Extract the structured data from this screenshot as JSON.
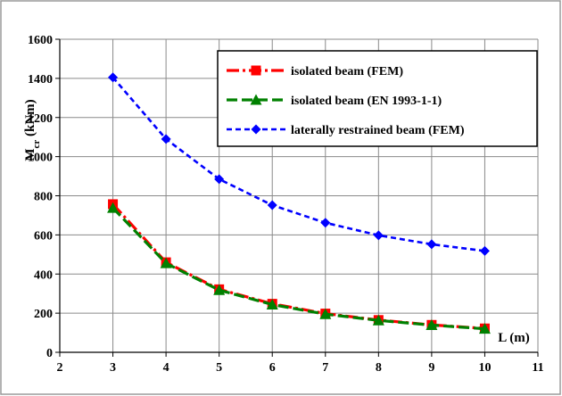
{
  "chart_data": {
    "type": "line",
    "title": "",
    "xlabel": "L (m)",
    "ylabel_main": "M",
    "ylabel_sub": "cr",
    "ylabel_unit": " (kNm)",
    "xlim": [
      2,
      11
    ],
    "ylim": [
      0,
      1600
    ],
    "xticks": [
      2,
      3,
      4,
      5,
      6,
      7,
      8,
      9,
      10,
      11
    ],
    "yticks": [
      0,
      200,
      400,
      600,
      800,
      1000,
      1200,
      1400,
      1600
    ],
    "grid": true,
    "legend_position": "top-right",
    "x": [
      3,
      4,
      5,
      6,
      7,
      8,
      9,
      10
    ],
    "series": [
      {
        "name": "isolated beam (FEM)",
        "color": "#ff0000",
        "marker": "square",
        "line_style": "dash-dot",
        "values": [
          757,
          460,
          322,
          248,
          198,
          165,
          140,
          122
        ]
      },
      {
        "name": "isolated beam (EN 1993-1-1)",
        "color": "#008000",
        "marker": "triangle",
        "line_style": "dashed",
        "values": [
          738,
          455,
          318,
          244,
          195,
          163,
          139,
          120
        ]
      },
      {
        "name": "laterally restrained beam (FEM)",
        "color": "#0000ff",
        "marker": "diamond",
        "line_style": "short-dash",
        "values": [
          1405,
          1090,
          885,
          752,
          662,
          598,
          552,
          518
        ]
      }
    ]
  }
}
